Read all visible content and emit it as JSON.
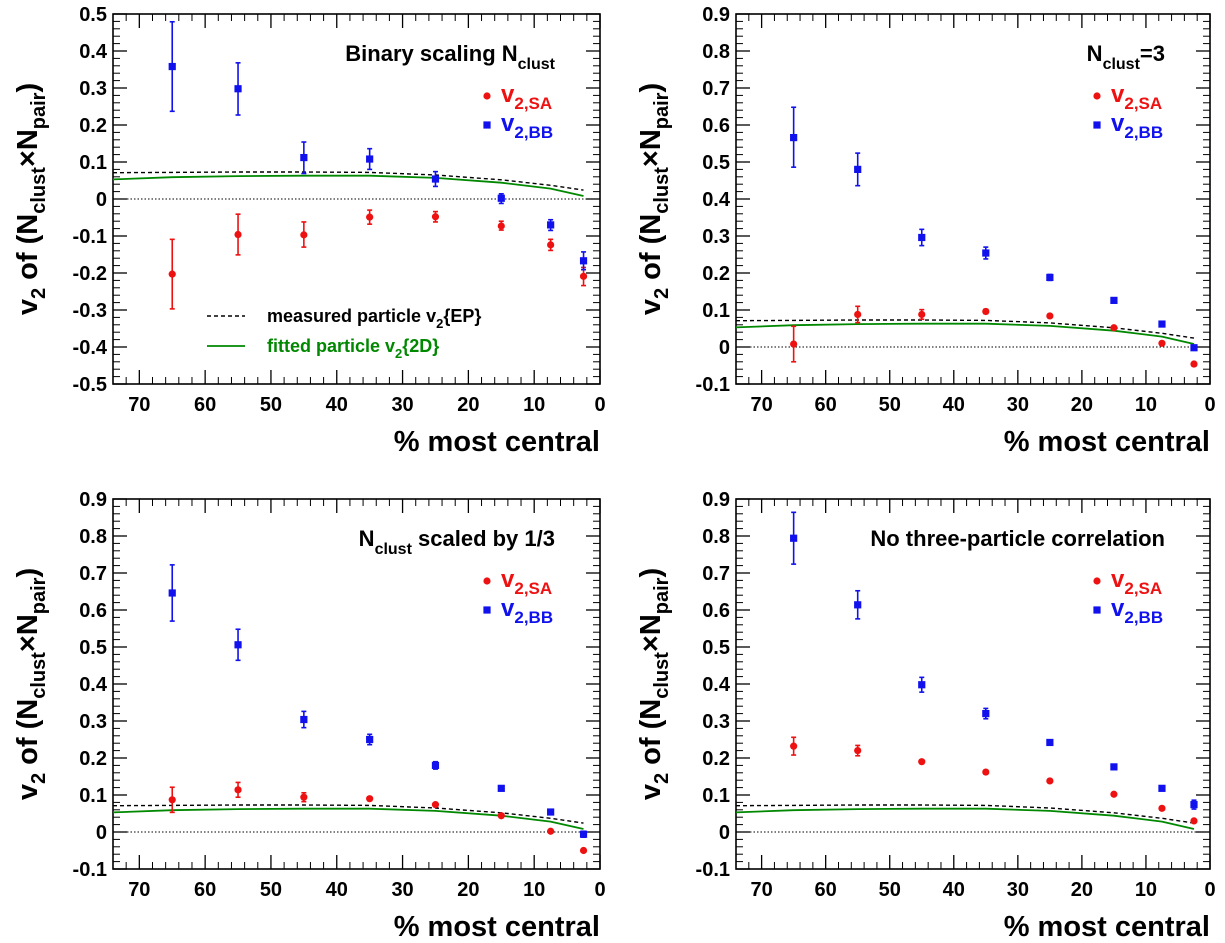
{
  "chart_data": [
    {
      "type": "scatter",
      "title": "Binary scaling N",
      "title_sub": "clust",
      "title_tail": "",
      "xlabel": "% most central",
      "ylabel": {
        "v": "v",
        "s2": "2",
        "of": " of (N",
        "clust": "clust",
        "x": "×N",
        "pair": "pair",
        "close": ")"
      },
      "xlim": [
        74.0,
        0
      ],
      "ylim": [
        -0.5,
        0.5
      ],
      "yticks": [
        -0.5,
        -0.4,
        -0.3,
        -0.2,
        -0.1,
        0,
        0.1,
        0.2,
        0.3,
        0.4,
        0.5
      ],
      "ytick_labels": [
        "-0.5",
        "-0.4",
        "-0.3",
        "-0.2",
        "-0.1",
        "0",
        "0.1",
        "0.2",
        "0.3",
        "0.4",
        "0.5"
      ],
      "xticks": [
        70,
        60,
        50,
        40,
        30,
        20,
        10,
        0
      ],
      "xtick_labels": [
        "70",
        "60",
        "50",
        "40",
        "30",
        "20",
        "10",
        "0"
      ],
      "legend": [
        {
          "marker": "circle",
          "color": "#ee1111",
          "label": "v",
          "sub": "2,SA"
        },
        {
          "marker": "square",
          "color": "#1111ee",
          "label": "v",
          "sub": "2,BB"
        }
      ],
      "curve_legend": [
        {
          "style": "dashed",
          "label": "measured particle v",
          "sub": "2",
          "tail": "{EP}"
        },
        {
          "style": "solid",
          "label": "fitted particle v",
          "sub": "2",
          "tail": "{2D}"
        }
      ],
      "series": [
        {
          "name": "v2,SA",
          "marker": "circle",
          "color": "#ee1111",
          "points": [
            {
              "x": 65,
              "y": -0.203,
              "lo": -0.297,
              "hi": -0.109
            },
            {
              "x": 55,
              "y": -0.096,
              "lo": -0.151,
              "hi": -0.041
            },
            {
              "x": 45,
              "y": -0.097,
              "lo": -0.13,
              "hi": -0.062
            },
            {
              "x": 35,
              "y": -0.049,
              "lo": -0.068,
              "hi": -0.03
            },
            {
              "x": 25,
              "y": -0.048,
              "lo": -0.062,
              "hi": -0.034
            },
            {
              "x": 15,
              "y": -0.073,
              "lo": -0.084,
              "hi": -0.06
            },
            {
              "x": 7.5,
              "y": -0.124,
              "lo": -0.139,
              "hi": -0.109
            },
            {
              "x": 2.5,
              "y": -0.209,
              "lo": -0.234,
              "hi": -0.185
            }
          ]
        },
        {
          "name": "v2,BB",
          "marker": "square",
          "color": "#1111ee",
          "points": [
            {
              "x": 65,
              "y": 0.358,
              "lo": 0.237,
              "hi": 0.479
            },
            {
              "x": 55,
              "y": 0.298,
              "lo": 0.227,
              "hi": 0.368
            },
            {
              "x": 45,
              "y": 0.112,
              "lo": 0.069,
              "hi": 0.154
            },
            {
              "x": 35,
              "y": 0.108,
              "lo": 0.08,
              "hi": 0.136
            },
            {
              "x": 25,
              "y": 0.054,
              "lo": 0.034,
              "hi": 0.074
            },
            {
              "x": 15,
              "y": 0.002,
              "lo": -0.012,
              "hi": 0.014
            },
            {
              "x": 7.5,
              "y": -0.07,
              "lo": -0.085,
              "hi": -0.056
            },
            {
              "x": 2.5,
              "y": -0.167,
              "lo": -0.191,
              "hi": -0.143
            }
          ]
        }
      ],
      "curves": [
        {
          "style": "dashed",
          "color": "#000000",
          "x": [
            74,
            65,
            55,
            45,
            35,
            25,
            15,
            7.5,
            2.5
          ],
          "y": [
            0.071,
            0.072,
            0.073,
            0.073,
            0.072,
            0.065,
            0.052,
            0.037,
            0.024
          ]
        },
        {
          "style": "solid",
          "color": "#008800",
          "x": [
            74,
            65,
            55,
            45,
            35,
            25,
            15,
            7.5,
            2.5
          ],
          "y": [
            0.053,
            0.059,
            0.062,
            0.063,
            0.063,
            0.057,
            0.044,
            0.028,
            0.008
          ]
        }
      ]
    },
    {
      "type": "scatter",
      "title": "N",
      "title_sub": "clust",
      "title_tail": "=3",
      "xlabel": "% most central",
      "ylabel": {
        "v": "v",
        "s2": "2",
        "of": " of (N",
        "clust": "clust",
        "x": "×N",
        "pair": "pair",
        "close": ")"
      },
      "xlim": [
        74.0,
        0
      ],
      "ylim": [
        -0.1,
        0.9
      ],
      "yticks": [
        -0.1,
        0,
        0.1,
        0.2,
        0.3,
        0.4,
        0.5,
        0.6,
        0.7,
        0.8,
        0.9
      ],
      "ytick_labels": [
        "-0.1",
        "0",
        "0.1",
        "0.2",
        "0.3",
        "0.4",
        "0.5",
        "0.6",
        "0.7",
        "0.8",
        "0.9"
      ],
      "xticks": [
        70,
        60,
        50,
        40,
        30,
        20,
        10,
        0
      ],
      "xtick_labels": [
        "70",
        "60",
        "50",
        "40",
        "30",
        "20",
        "10",
        "0"
      ],
      "legend": [
        {
          "marker": "circle",
          "color": "#ee1111",
          "label": "v",
          "sub": "2,SA"
        },
        {
          "marker": "square",
          "color": "#1111ee",
          "label": "v",
          "sub": "2,BB"
        }
      ],
      "curve_legend": [],
      "series": [
        {
          "name": "v2,SA",
          "marker": "circle",
          "color": "#ee1111",
          "points": [
            {
              "x": 65,
              "y": 0.008,
              "lo": -0.04,
              "hi": 0.056
            },
            {
              "x": 55,
              "y": 0.088,
              "lo": 0.066,
              "hi": 0.11
            },
            {
              "x": 45,
              "y": 0.088,
              "lo": 0.075,
              "hi": 0.101
            },
            {
              "x": 35,
              "y": 0.096,
              "lo": 0.09,
              "hi": 0.102
            },
            {
              "x": 25,
              "y": 0.084,
              "lo": 0.08,
              "hi": 0.088
            },
            {
              "x": 15,
              "y": 0.052,
              "lo": 0.048,
              "hi": 0.056
            },
            {
              "x": 7.5,
              "y": 0.01,
              "lo": 0.006,
              "hi": 0.014
            },
            {
              "x": 2.5,
              "y": -0.046,
              "lo": -0.05,
              "hi": -0.042
            }
          ]
        },
        {
          "name": "v2,BB",
          "marker": "square",
          "color": "#1111ee",
          "points": [
            {
              "x": 65,
              "y": 0.566,
              "lo": 0.486,
              "hi": 0.648
            },
            {
              "x": 55,
              "y": 0.48,
              "lo": 0.436,
              "hi": 0.524
            },
            {
              "x": 45,
              "y": 0.296,
              "lo": 0.274,
              "hi": 0.318
            },
            {
              "x": 35,
              "y": 0.254,
              "lo": 0.238,
              "hi": 0.27
            },
            {
              "x": 25,
              "y": 0.188,
              "lo": 0.18,
              "hi": 0.196
            },
            {
              "x": 15,
              "y": 0.126,
              "lo": 0.12,
              "hi": 0.132
            },
            {
              "x": 7.5,
              "y": 0.062,
              "lo": 0.058,
              "hi": 0.066
            },
            {
              "x": 2.5,
              "y": -0.002,
              "lo": -0.006,
              "hi": 0.002
            }
          ]
        }
      ],
      "curves": [
        {
          "style": "dashed",
          "color": "#000000",
          "x": [
            74,
            65,
            55,
            45,
            35,
            25,
            15,
            7.5,
            2.5
          ],
          "y": [
            0.071,
            0.072,
            0.073,
            0.073,
            0.072,
            0.065,
            0.052,
            0.037,
            0.024
          ]
        },
        {
          "style": "solid",
          "color": "#008800",
          "x": [
            74,
            65,
            55,
            45,
            35,
            25,
            15,
            7.5,
            2.5
          ],
          "y": [
            0.053,
            0.059,
            0.062,
            0.063,
            0.063,
            0.057,
            0.044,
            0.028,
            0.008
          ]
        }
      ]
    },
    {
      "type": "scatter",
      "title": "N",
      "title_sub": "clust",
      "title_tail": " scaled by 1/3",
      "xlabel": "% most central",
      "ylabel": {
        "v": "v",
        "s2": "2",
        "of": " of (N",
        "clust": "clust",
        "x": "×N",
        "pair": "pair",
        "close": ")"
      },
      "xlim": [
        74.0,
        0
      ],
      "ylim": [
        -0.1,
        0.9
      ],
      "yticks": [
        -0.1,
        0,
        0.1,
        0.2,
        0.3,
        0.4,
        0.5,
        0.6,
        0.7,
        0.8,
        0.9
      ],
      "ytick_labels": [
        "-0.1",
        "0",
        "0.1",
        "0.2",
        "0.3",
        "0.4",
        "0.5",
        "0.6",
        "0.7",
        "0.8",
        "0.9"
      ],
      "xticks": [
        70,
        60,
        50,
        40,
        30,
        20,
        10,
        0
      ],
      "xtick_labels": [
        "70",
        "60",
        "50",
        "40",
        "30",
        "20",
        "10",
        "0"
      ],
      "legend": [
        {
          "marker": "circle",
          "color": "#ee1111",
          "label": "v",
          "sub": "2,SA"
        },
        {
          "marker": "square",
          "color": "#1111ee",
          "label": "v",
          "sub": "2,BB"
        }
      ],
      "curve_legend": [],
      "series": [
        {
          "name": "v2,SA",
          "marker": "circle",
          "color": "#ee1111",
          "points": [
            {
              "x": 65,
              "y": 0.087,
              "lo": 0.053,
              "hi": 0.121
            },
            {
              "x": 55,
              "y": 0.114,
              "lo": 0.094,
              "hi": 0.134
            },
            {
              "x": 45,
              "y": 0.094,
              "lo": 0.082,
              "hi": 0.106
            },
            {
              "x": 35,
              "y": 0.09,
              "lo": 0.085,
              "hi": 0.095
            },
            {
              "x": 25,
              "y": 0.074,
              "lo": 0.07,
              "hi": 0.078
            },
            {
              "x": 15,
              "y": 0.044,
              "lo": 0.04,
              "hi": 0.048
            },
            {
              "x": 7.5,
              "y": 0.002,
              "lo": -0.002,
              "hi": 0.006
            },
            {
              "x": 2.5,
              "y": -0.05,
              "lo": -0.054,
              "hi": -0.046
            }
          ]
        },
        {
          "name": "v2,BB",
          "marker": "square",
          "color": "#1111ee",
          "points": [
            {
              "x": 65,
              "y": 0.646,
              "lo": 0.57,
              "hi": 0.722
            },
            {
              "x": 55,
              "y": 0.506,
              "lo": 0.464,
              "hi": 0.548
            },
            {
              "x": 45,
              "y": 0.304,
              "lo": 0.282,
              "hi": 0.326
            },
            {
              "x": 35,
              "y": 0.25,
              "lo": 0.236,
              "hi": 0.264
            },
            {
              "x": 25,
              "y": 0.18,
              "lo": 0.17,
              "hi": 0.19
            },
            {
              "x": 15,
              "y": 0.118,
              "lo": 0.113,
              "hi": 0.123
            },
            {
              "x": 7.5,
              "y": 0.054,
              "lo": 0.05,
              "hi": 0.058
            },
            {
              "x": 2.5,
              "y": -0.006,
              "lo": -0.014,
              "hi": 0.002
            }
          ]
        }
      ],
      "curves": [
        {
          "style": "dashed",
          "color": "#000000",
          "x": [
            74,
            65,
            55,
            45,
            35,
            25,
            15,
            7.5,
            2.5
          ],
          "y": [
            0.071,
            0.072,
            0.073,
            0.073,
            0.072,
            0.065,
            0.052,
            0.037,
            0.024
          ]
        },
        {
          "style": "solid",
          "color": "#008800",
          "x": [
            74,
            65,
            55,
            45,
            35,
            25,
            15,
            7.5,
            2.5
          ],
          "y": [
            0.053,
            0.059,
            0.062,
            0.063,
            0.063,
            0.057,
            0.044,
            0.028,
            0.008
          ]
        }
      ]
    },
    {
      "type": "scatter",
      "title": "No three-particle correlation",
      "title_sub": "",
      "title_tail": "",
      "xlabel": "% most central",
      "ylabel": {
        "v": "v",
        "s2": "2",
        "of": " of (N",
        "clust": "clust",
        "x": "×N",
        "pair": "pair",
        "close": ")"
      },
      "xlim": [
        74.0,
        0
      ],
      "ylim": [
        -0.1,
        0.9
      ],
      "yticks": [
        -0.1,
        0,
        0.1,
        0.2,
        0.3,
        0.4,
        0.5,
        0.6,
        0.7,
        0.8,
        0.9
      ],
      "ytick_labels": [
        "-0.1",
        "0",
        "0.1",
        "0.2",
        "0.3",
        "0.4",
        "0.5",
        "0.6",
        "0.7",
        "0.8",
        "0.9"
      ],
      "xticks": [
        70,
        60,
        50,
        40,
        30,
        20,
        10,
        0
      ],
      "xtick_labels": [
        "70",
        "60",
        "50",
        "40",
        "30",
        "20",
        "10",
        "0"
      ],
      "legend": [
        {
          "marker": "circle",
          "color": "#ee1111",
          "label": "v",
          "sub": "2,SA"
        },
        {
          "marker": "square",
          "color": "#1111ee",
          "label": "v",
          "sub": "2,BB"
        }
      ],
      "curve_legend": [],
      "series": [
        {
          "name": "v2,SA",
          "marker": "circle",
          "color": "#ee1111",
          "points": [
            {
              "x": 65,
              "y": 0.232,
              "lo": 0.208,
              "hi": 0.256
            },
            {
              "x": 55,
              "y": 0.22,
              "lo": 0.206,
              "hi": 0.234
            },
            {
              "x": 45,
              "y": 0.19,
              "lo": 0.186,
              "hi": 0.194
            },
            {
              "x": 35,
              "y": 0.162,
              "lo": 0.158,
              "hi": 0.166
            },
            {
              "x": 25,
              "y": 0.138,
              "lo": 0.134,
              "hi": 0.142
            },
            {
              "x": 15,
              "y": 0.102,
              "lo": 0.098,
              "hi": 0.106
            },
            {
              "x": 7.5,
              "y": 0.064,
              "lo": 0.06,
              "hi": 0.068
            },
            {
              "x": 2.5,
              "y": 0.03,
              "lo": 0.026,
              "hi": 0.034
            }
          ]
        },
        {
          "name": "v2,BB",
          "marker": "square",
          "color": "#1111ee",
          "points": [
            {
              "x": 65,
              "y": 0.794,
              "lo": 0.724,
              "hi": 0.864
            },
            {
              "x": 55,
              "y": 0.614,
              "lo": 0.576,
              "hi": 0.652
            },
            {
              "x": 45,
              "y": 0.398,
              "lo": 0.378,
              "hi": 0.418
            },
            {
              "x": 35,
              "y": 0.32,
              "lo": 0.306,
              "hi": 0.334
            },
            {
              "x": 25,
              "y": 0.242,
              "lo": 0.237,
              "hi": 0.247
            },
            {
              "x": 15,
              "y": 0.176,
              "lo": 0.171,
              "hi": 0.181
            },
            {
              "x": 7.5,
              "y": 0.118,
              "lo": 0.113,
              "hi": 0.123
            },
            {
              "x": 2.5,
              "y": 0.074,
              "lo": 0.062,
              "hi": 0.086
            }
          ]
        }
      ],
      "curves": [
        {
          "style": "dashed",
          "color": "#000000",
          "x": [
            74,
            65,
            55,
            45,
            35,
            25,
            15,
            7.5,
            2.5
          ],
          "y": [
            0.071,
            0.072,
            0.073,
            0.073,
            0.072,
            0.065,
            0.052,
            0.037,
            0.024
          ]
        },
        {
          "style": "solid",
          "color": "#008800",
          "x": [
            74,
            65,
            55,
            45,
            35,
            25,
            15,
            7.5,
            2.5
          ],
          "y": [
            0.053,
            0.059,
            0.062,
            0.063,
            0.063,
            0.057,
            0.044,
            0.028,
            0.008
          ]
        }
      ]
    }
  ]
}
